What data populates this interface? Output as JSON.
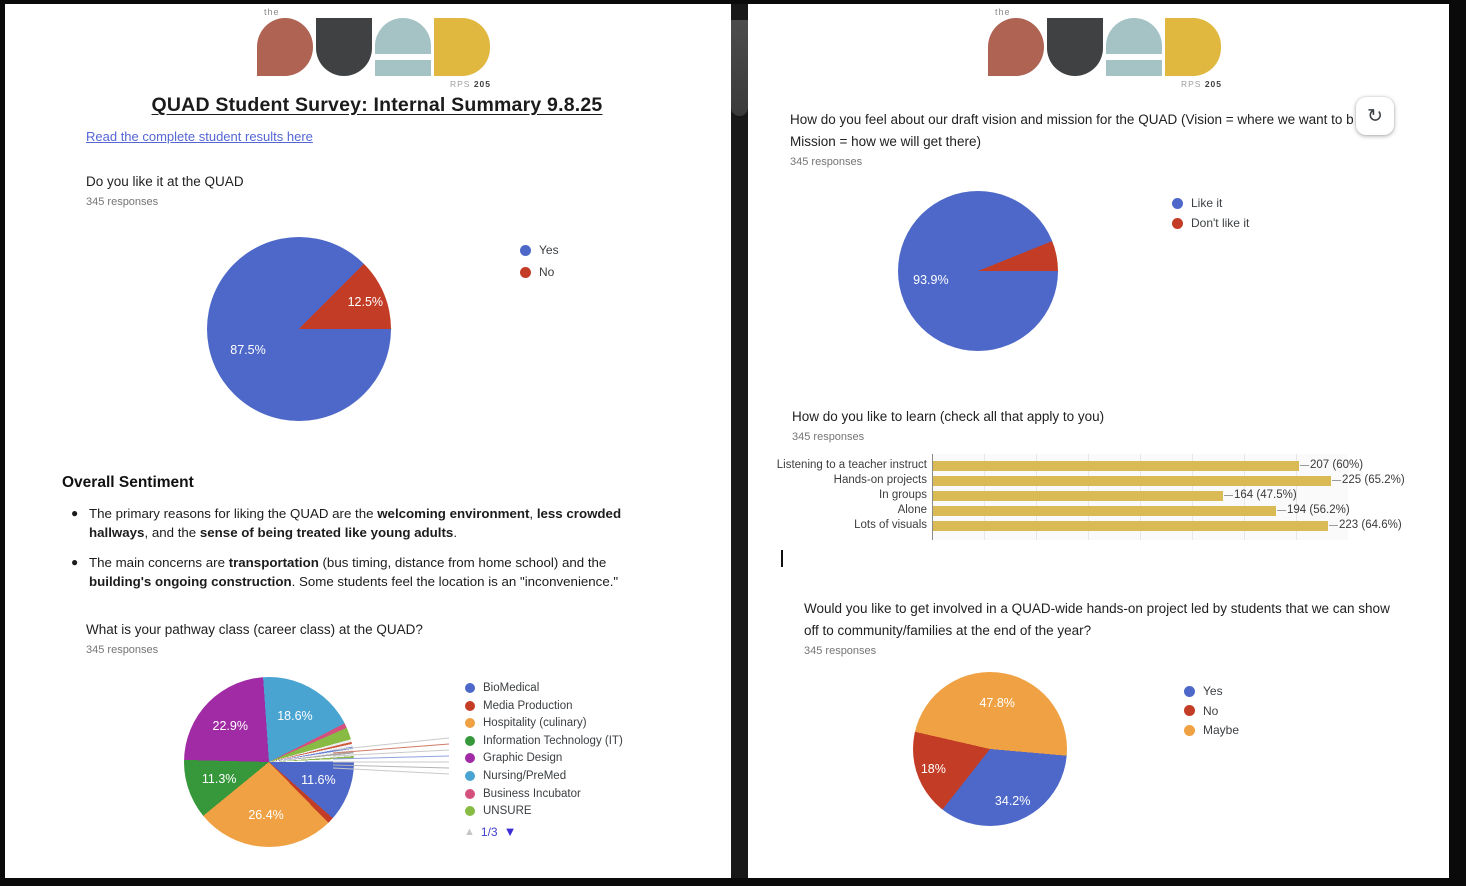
{
  "logo": {
    "the": "the",
    "rps": "RPS",
    "rps_number": "205"
  },
  "colors": {
    "logo_q": "#AE6353",
    "logo_u": "#3F4142",
    "logo_a": "#A5C2C4",
    "logo_d": "#E0B73F",
    "chart_blue": "#4D68C8",
    "chart_red": "#C33D26",
    "chart_orange": "#EFA143",
    "chart_green": "#36973B",
    "chart_purple": "#A12BA5",
    "chart_lightblue": "#49A4D1",
    "chart_pink": "#D4517E",
    "chart_lime": "#88BB44",
    "chart_yellow": "#D9BA55",
    "link_blue": "#5566d4"
  },
  "document": {
    "title": "QUAD Student Survey: Internal Summary 9.8.25",
    "link": "Read the complete student results here"
  },
  "sentiment": {
    "heading": "Overall Sentiment",
    "bullets": [
      {
        "lines": [
          [
            {
              "t": "The primary reasons for liking the QUAD are the "
            },
            {
              "t": "welcoming environment",
              "b": 1
            },
            {
              "t": ", "
            },
            {
              "t": "less crowded",
              "b": 1
            }
          ],
          [
            {
              "t": "hallways",
              "b": 1
            },
            {
              "t": ", and the "
            },
            {
              "t": "sense of being treated like young adults",
              "b": 1
            },
            {
              "t": "."
            }
          ]
        ]
      },
      {
        "lines": [
          [
            {
              "t": "The main concerns are "
            },
            {
              "t": "transportation",
              "b": 1
            },
            {
              "t": " (bus timing, distance from home school) and the "
            }
          ],
          [
            {
              "t": "building's ongoing construction",
              "b": 1
            },
            {
              "t": ". Some students feel the location is an \"inconvenience.\""
            }
          ]
        ]
      }
    ]
  },
  "toolbar": {
    "refresh_icon": "↻"
  },
  "chart_data": [
    {
      "id": "like_quad",
      "type": "pie",
      "title": "Do you like it at the QUAD",
      "responses": "345 responses",
      "rotation": 90,
      "slices": [
        {
          "label": "Yes",
          "value": 87.5,
          "color": "#4D68C8",
          "pct": "87.5%",
          "lr": 0.6
        },
        {
          "label": "No",
          "value": 12.5,
          "color": "#C33D26",
          "pct": "12.5%",
          "lr": 0.78
        }
      ],
      "legend": [
        {
          "label": "Yes",
          "color": "#4D68C8"
        },
        {
          "label": "No",
          "color": "#C33D26"
        }
      ]
    },
    {
      "id": "pathway",
      "type": "pie",
      "title": "What is your pathway class (career class) at the QUAD?",
      "responses": "345 responses",
      "rotation": -4,
      "slices": [
        {
          "label": "Nursing/PreMed",
          "value": 18.6,
          "color": "#49A4D1",
          "pct": "18.6%",
          "lr": 0.62
        },
        {
          "label": "Business Incubator",
          "value": 0.9,
          "color": "#D4517E"
        },
        {
          "label": "UNSURE",
          "value": 2.3,
          "color": "#88BB44"
        },
        {
          "label": "",
          "value": 0.5,
          "color": "#ededed"
        },
        {
          "label": "",
          "value": 0.4,
          "color": "#cf5a40"
        },
        {
          "label": "",
          "value": 0.5,
          "color": "#f4f4f4"
        },
        {
          "label": "",
          "value": 0.4,
          "color": "#6b84d6"
        },
        {
          "label": "",
          "value": 0.5,
          "color": "#efefef"
        },
        {
          "label": "",
          "value": 0.4,
          "color": "#a8a8a8"
        },
        {
          "label": "",
          "value": 0.5,
          "color": "#f6f6f6"
        },
        {
          "label": "",
          "value": 0.4,
          "color": "#8cb84f"
        },
        {
          "label": "",
          "value": 0.6,
          "color": "#fbfbfb"
        },
        {
          "label": "BioMedical",
          "value": 11.6,
          "color": "#4D68C8",
          "pct": "11.6%",
          "lr": 0.62
        },
        {
          "label": "Media Production",
          "value": 1.2,
          "color": "#C33D26"
        },
        {
          "label": "Hospitality (culinary)",
          "value": 26.4,
          "color": "#EFA143",
          "pct": "26.4%",
          "lr": 0.62
        },
        {
          "label": "Information Technology (IT)",
          "value": 11.3,
          "color": "#36973B",
          "pct": "11.3%",
          "lr": 0.62
        },
        {
          "label": "Graphic Design",
          "value": 22.9,
          "color": "#A12BA5",
          "pct": "22.9%",
          "lr": 0.62
        }
      ],
      "legend": [
        {
          "label": "BioMedical",
          "color": "#4D68C8"
        },
        {
          "label": "Media Production",
          "color": "#C33D26"
        },
        {
          "label": "Hospitality (culinary)",
          "color": "#EFA143"
        },
        {
          "label": "Information Technology (IT)",
          "color": "#36973B"
        },
        {
          "label": "Graphic Design",
          "color": "#A12BA5"
        },
        {
          "label": "Nursing/PreMed",
          "color": "#49A4D1"
        },
        {
          "label": "Business Incubator",
          "color": "#D4517E"
        },
        {
          "label": "UNSURE",
          "color": "#88BB44"
        }
      ],
      "pagination": {
        "up": "▲",
        "current": "1/3",
        "down": "▼"
      }
    },
    {
      "id": "vision",
      "type": "pie",
      "title_lines": [
        "How do you feel about our draft vision and mission for the QUAD (Vision = where we want to b",
        "Mission = how we will get there)"
      ],
      "responses": "345 responses",
      "rotation": 90,
      "slices": [
        {
          "label": "Like it",
          "value": 93.9,
          "color": "#4D68C8",
          "pct": "93.9%",
          "lr": 0.6
        },
        {
          "label": "Don't like it",
          "value": 6.1,
          "color": "#C33D26"
        }
      ],
      "legend": [
        {
          "label": "Like it",
          "color": "#4D68C8"
        },
        {
          "label": "Don't like it",
          "color": "#C33D26"
        }
      ]
    },
    {
      "id": "learn",
      "type": "bar",
      "title": "How do you like to learn (check all that apply to you)",
      "responses": "345 responses",
      "categories": [
        "Listening to a teacher instruct",
        "Hands-on projects",
        "In groups",
        "Alone",
        "Lots of visuals"
      ],
      "values": [
        207,
        225,
        164,
        194,
        223
      ],
      "value_labels": [
        "207 (60%)",
        "225 (65.2%)",
        "164 (47.5%)",
        "194 (56.2%)",
        "223 (64.6%)"
      ],
      "axis_max": 234,
      "bar_color": "#D9BA55",
      "grid": true,
      "legend_position": "none"
    },
    {
      "id": "involve",
      "type": "pie",
      "title_lines": [
        "Would you like to get involved in a QUAD-wide hands-on project led by students that we can show",
        "off to community/families at the end of the year?"
      ],
      "responses": "345 responses",
      "rotation": 95,
      "slices": [
        {
          "label": "Yes",
          "value": 34.2,
          "color": "#4D68C8",
          "pct": "34.2%",
          "lr": 0.74
        },
        {
          "label": "No",
          "value": 18,
          "color": "#C33D26",
          "pct": "18%",
          "lr": 0.78
        },
        {
          "label": "Maybe",
          "value": 47.8,
          "color": "#EFA143",
          "pct": "47.8%",
          "lr": 0.6
        }
      ],
      "legend": [
        {
          "label": "Yes",
          "color": "#4D68C8"
        },
        {
          "label": "No",
          "color": "#C33D26"
        },
        {
          "label": "Maybe",
          "color": "#EFA143"
        }
      ]
    }
  ]
}
